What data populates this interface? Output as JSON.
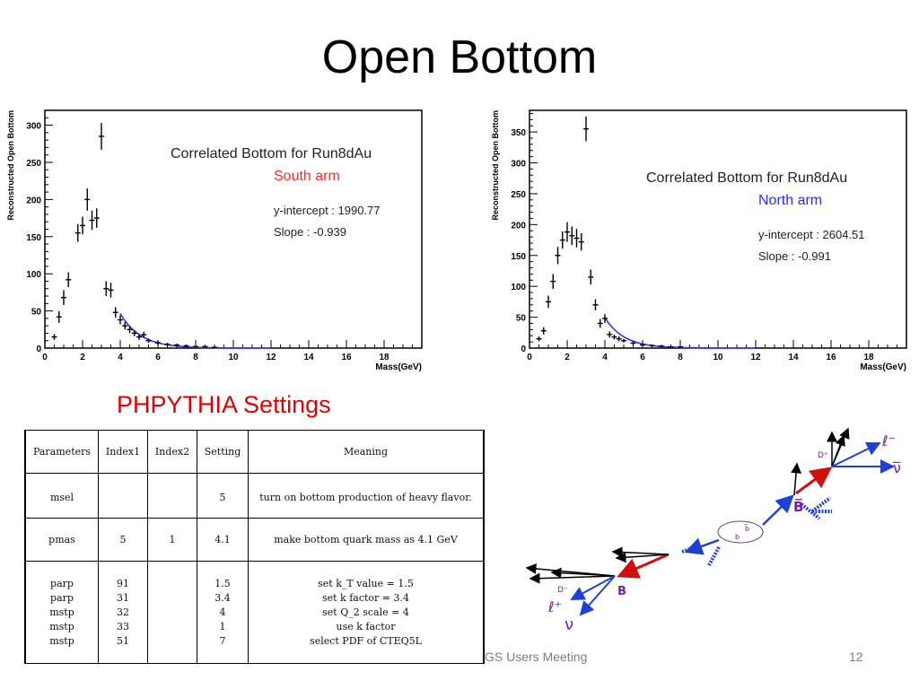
{
  "slide": {
    "title": "Open Bottom",
    "footer": "GS Users Meeting",
    "page_number": "12"
  },
  "chart_data": [
    {
      "type": "scatter",
      "ylabel": "Reconstructed Open Bottom",
      "xlabel": "Mass(GeV)",
      "xlim": [
        0,
        20
      ],
      "ylim": [
        0,
        320
      ],
      "xticks": [
        "0",
        "2",
        "4",
        "6",
        "8",
        "10",
        "12",
        "14",
        "16",
        "18"
      ],
      "yticks": [
        "0",
        "50",
        "100",
        "150",
        "200",
        "250",
        "300"
      ],
      "annotation": {
        "title": "Correlated Bottom for Run8dAu",
        "arm": "South arm",
        "intercept": "y-intercept : 1990.77",
        "slope": "Slope : -0.939",
        "arm_color": "#ff2b2b"
      },
      "series": [
        {
          "x": [
            0.5,
            0.75,
            1.0,
            1.25,
            1.75,
            2.0,
            2.25,
            2.5,
            2.75,
            3.0,
            3.25,
            3.5,
            3.75,
            4.0,
            4.25,
            4.5,
            4.75,
            5.0,
            5.25,
            5.5,
            6.0,
            6.5,
            7.0,
            7.5,
            8.0,
            8.5,
            9.0
          ],
          "y": [
            15,
            42,
            68,
            92,
            155,
            165,
            200,
            172,
            175,
            285,
            80,
            78,
            48,
            38,
            30,
            25,
            20,
            15,
            18,
            10,
            7,
            5,
            4,
            3,
            2,
            2,
            1
          ],
          "yerr": [
            4,
            8,
            10,
            10,
            12,
            12,
            15,
            13,
            13,
            18,
            10,
            10,
            7,
            6,
            5,
            5,
            4,
            4,
            4,
            3,
            3,
            2,
            2,
            2,
            1,
            1,
            1
          ]
        }
      ],
      "fit": {
        "intercept": 1990.77,
        "slope": -0.939,
        "xrange": [
          4.0,
          12.0
        ],
        "color": "#3333ff"
      }
    },
    {
      "type": "scatter",
      "ylabel": "Reconstructed Open Bottom",
      "xlabel": "Mass(GeV)",
      "xlim": [
        0,
        20
      ],
      "ylim": [
        0,
        385
      ],
      "xticks": [
        "0",
        "2",
        "4",
        "6",
        "8",
        "10",
        "12",
        "14",
        "16",
        "18"
      ],
      "yticks": [
        "0",
        "50",
        "100",
        "150",
        "200",
        "250",
        "300",
        "350"
      ],
      "annotation": {
        "title": "Correlated Bottom for Run8dAu",
        "arm": "North arm",
        "intercept": "y-intercept : 2604.51",
        "slope": "Slope : -0.991",
        "arm_color": "#2b2bff"
      },
      "series": [
        {
          "x": [
            0.5,
            0.75,
            1.0,
            1.25,
            1.5,
            1.75,
            2.0,
            2.25,
            2.5,
            2.75,
            3.0,
            3.25,
            3.5,
            3.75,
            4.0,
            4.25,
            4.5,
            4.75,
            5.0,
            5.5,
            6.0,
            6.5,
            7.0,
            7.5,
            8.0
          ],
          "y": [
            15,
            28,
            75,
            108,
            150,
            175,
            188,
            182,
            178,
            172,
            355,
            115,
            70,
            40,
            48,
            22,
            18,
            15,
            12,
            8,
            5,
            4,
            3,
            2,
            2
          ],
          "yerr": [
            4,
            6,
            10,
            12,
            14,
            14,
            16,
            15,
            15,
            14,
            20,
            12,
            9,
            7,
            7,
            5,
            4,
            4,
            3,
            3,
            2,
            2,
            1,
            1,
            1
          ]
        }
      ],
      "fit": {
        "intercept": 2604.51,
        "slope": -0.991,
        "xrange": [
          4.0,
          12.0
        ],
        "color": "#3333ff"
      }
    }
  ],
  "settings": {
    "heading": "PHPYTHIA Settings",
    "headers": [
      "Parameters",
      "Index1",
      "Index2",
      "Setting",
      "Meaning"
    ],
    "rows": [
      {
        "param": [
          "msel"
        ],
        "idx1": [
          ""
        ],
        "idx2": [
          ""
        ],
        "setting": [
          "5"
        ],
        "meaning": [
          "turn on bottom production of heavy flavor."
        ]
      },
      {
        "param": [
          "pmas"
        ],
        "idx1": [
          "5"
        ],
        "idx2": [
          "1"
        ],
        "setting": [
          "4.1"
        ],
        "meaning": [
          "make bottom quark mass as 4.1 GeV"
        ]
      },
      {
        "param": [
          "parp",
          "parp",
          "mstp",
          "mstp",
          "mstp"
        ],
        "idx1": [
          "91",
          "31",
          "32",
          "33",
          "51"
        ],
        "idx2": [
          "",
          "",
          "",
          "",
          ""
        ],
        "setting": [
          "1.5",
          "3.4",
          "4",
          "1",
          "7"
        ],
        "meaning": [
          "set k_T value = 1.5",
          "set k factor = 3.4",
          "set Q_2 scale = 4",
          "use k factor",
          "select PDF of CTEQ5L"
        ]
      }
    ]
  },
  "diagram": {
    "labels": {
      "d_plus": "D⁺",
      "l_minus": "ℓ⁻",
      "nu_bar": "ν̅",
      "b_bar": "B̅",
      "b": "B",
      "d_minus": "D⁻",
      "l_plus": "ℓ⁺",
      "nu": "ν",
      "sub_l": "ℓ",
      "quark_b": "b",
      "quark_bbar": "b̅"
    },
    "colors": {
      "label_purple": "#7a1fa2",
      "blue": "#1f3fd6",
      "red": "#d01010",
      "black": "#000000"
    }
  }
}
